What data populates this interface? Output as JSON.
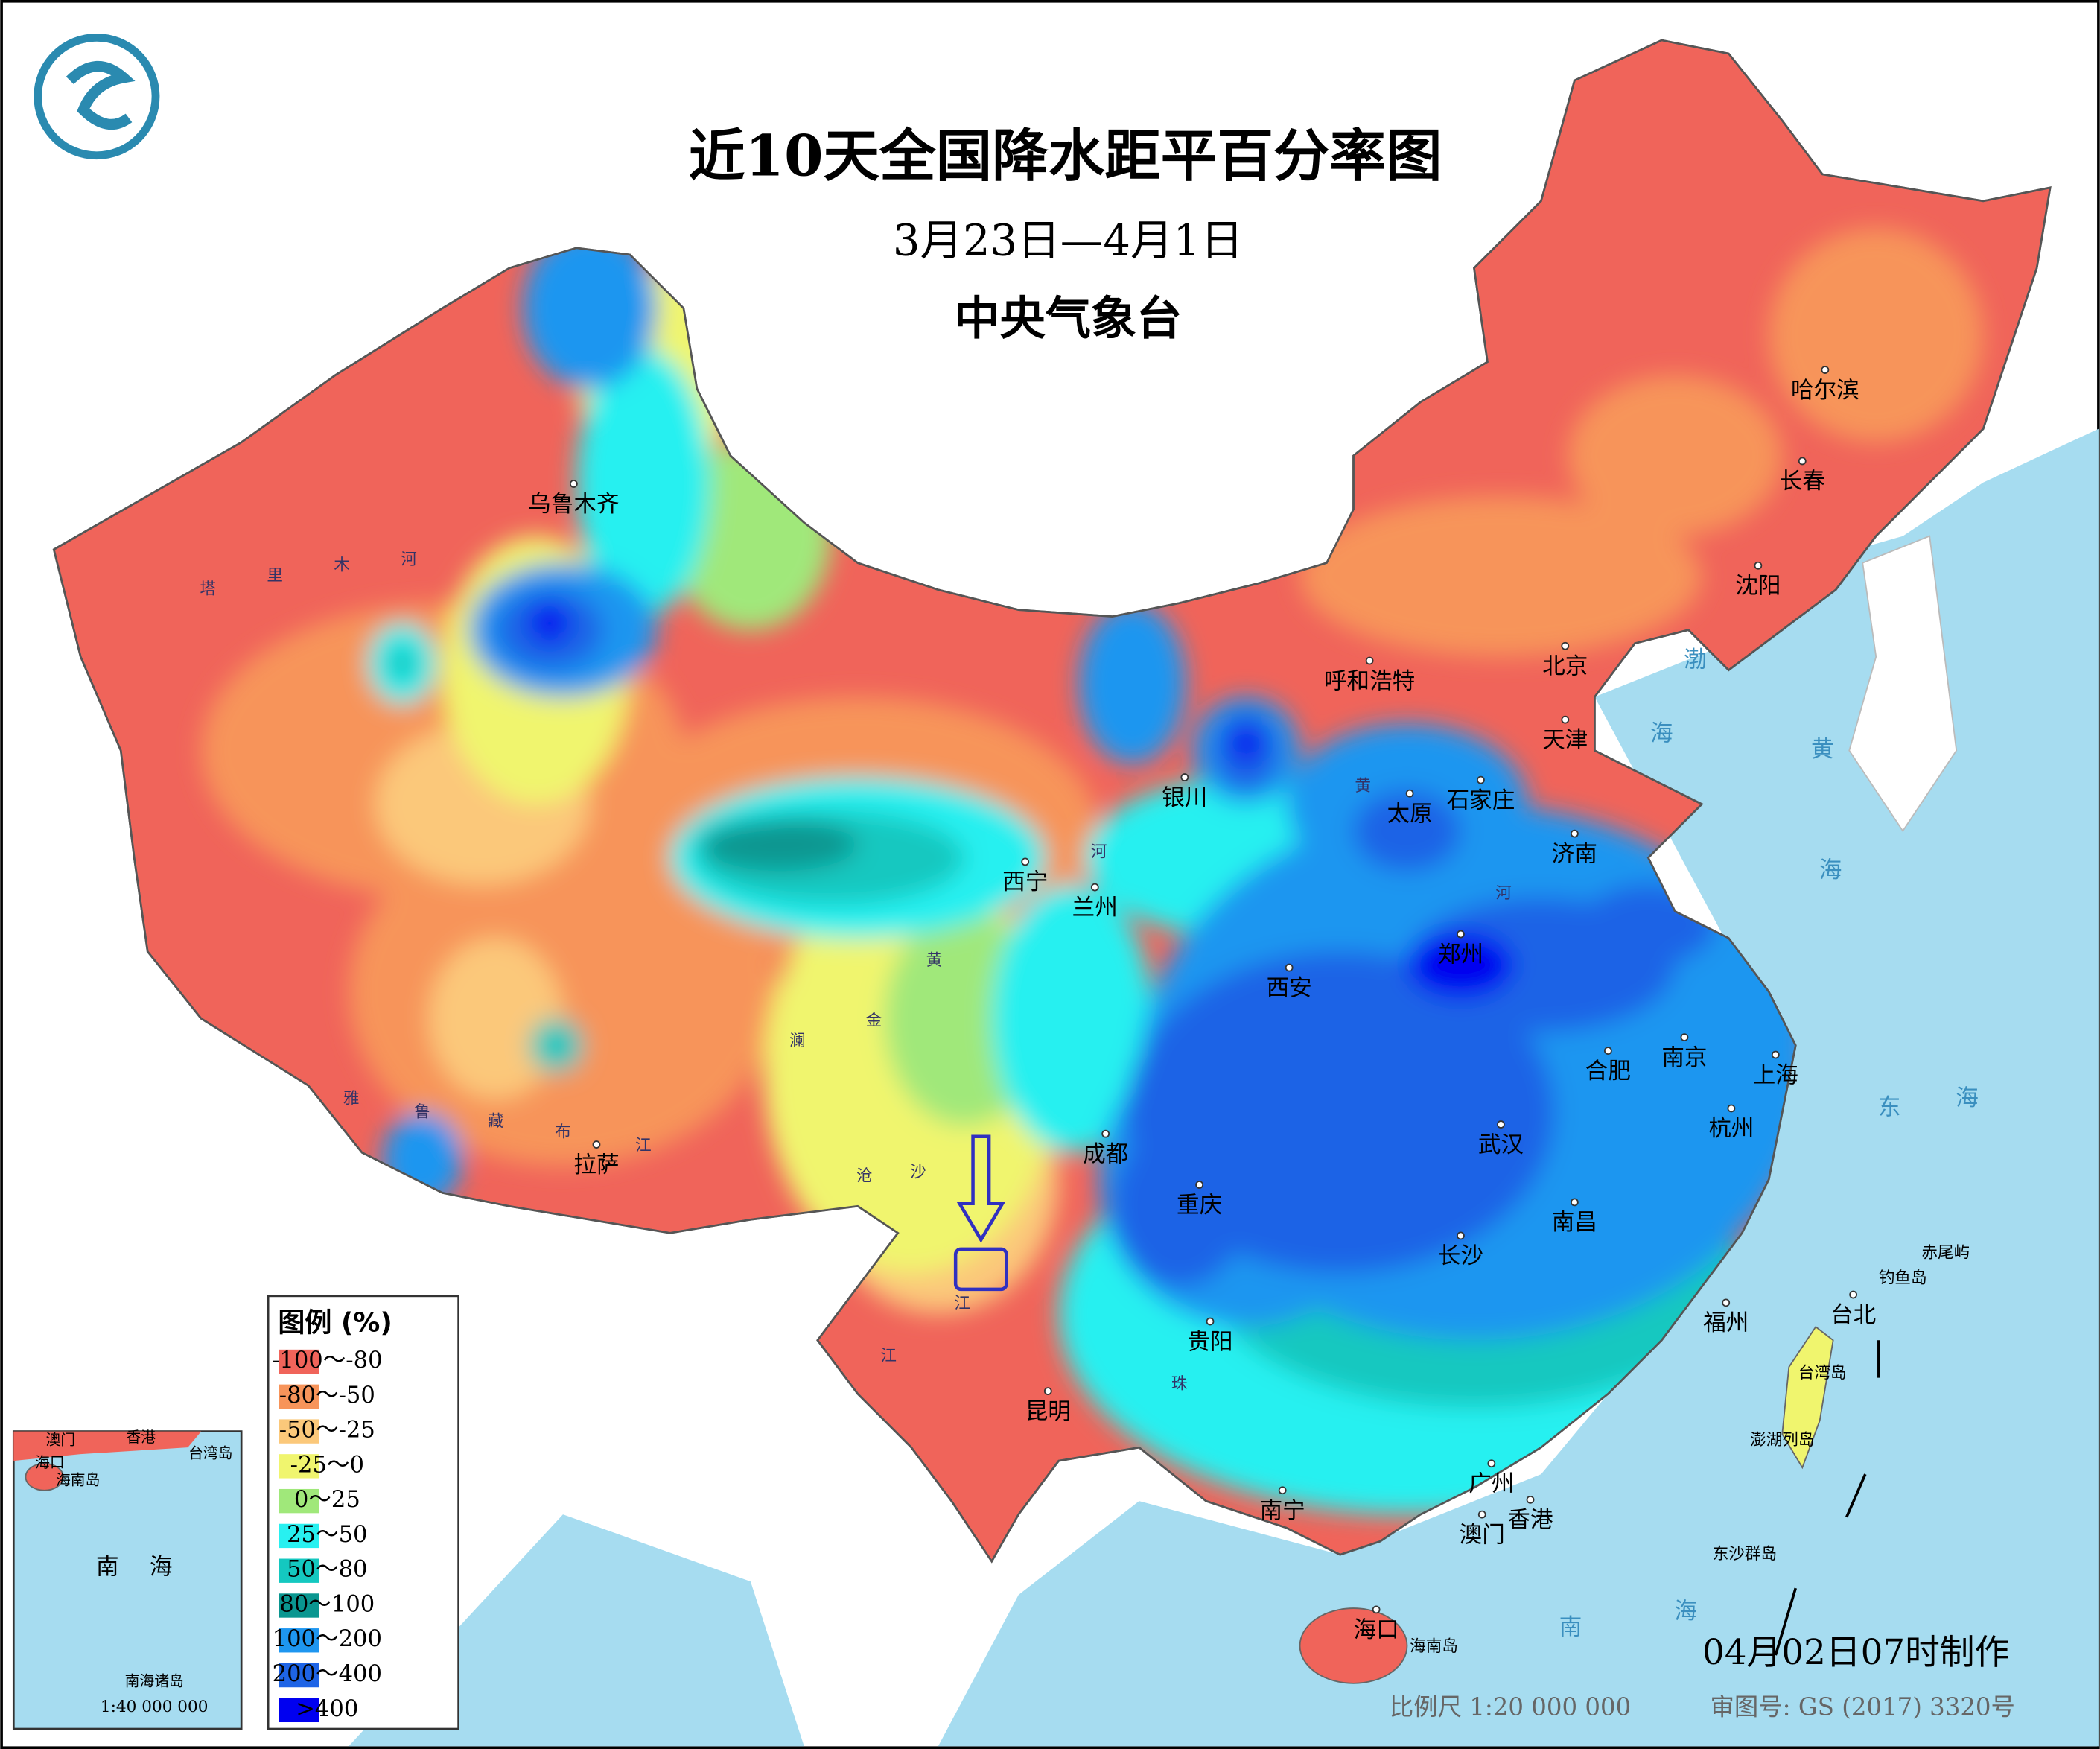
{
  "header": {
    "title": "近10天全国降水距平百分率图",
    "subtitle": "3月23日—4月1日",
    "agency": "中央气象台"
  },
  "legend": {
    "title": "图例 (%)",
    "items": [
      {
        "label": "-100～-80",
        "color": "#f0645a"
      },
      {
        "label": "-80～-50",
        "color": "#f7945a"
      },
      {
        "label": "-50～-25",
        "color": "#fbc87a"
      },
      {
        "label": "-25～0",
        "color": "#f0f56e"
      },
      {
        "label": "0～25",
        "color": "#a0e87a"
      },
      {
        "label": "25～50",
        "color": "#28f0f0"
      },
      {
        "label": "50～80",
        "color": "#14c8c0"
      },
      {
        "label": "80～100",
        "color": "#0a9690"
      },
      {
        "label": "100～200",
        "color": "#1e96f0"
      },
      {
        "label": "200～400",
        "color": "#1e64e6"
      },
      {
        "label": ">400",
        "color": "#0000f0"
      }
    ]
  },
  "cities": [
    "乌鲁木齐",
    "哈尔滨",
    "长春",
    "沈阳",
    "北京",
    "天津",
    "呼和浩特",
    "银川",
    "太原",
    "石家庄",
    "济南",
    "西宁",
    "兰州",
    "郑州",
    "西安",
    "合肥",
    "南京",
    "上海",
    "杭州",
    "武汉",
    "成都",
    "拉萨",
    "重庆",
    "南昌",
    "长沙",
    "福州",
    "台北",
    "贵阳",
    "昆明",
    "广州",
    "南宁",
    "香港",
    "澳门",
    "海口"
  ],
  "sea_labels": [
    "渤",
    "海",
    "黄",
    "海",
    "东",
    "海",
    "南",
    "海"
  ],
  "island_labels": [
    "台湾岛",
    "海南岛",
    "赤尾屿",
    "钓鱼岛",
    "澎湖列岛",
    "东沙群岛"
  ],
  "river_labels": [
    "塔",
    "里",
    "木",
    "河",
    "雅",
    "鲁",
    "藏",
    "布",
    "江",
    "黄",
    "河",
    "河",
    "黄",
    "金",
    "沙",
    "江",
    "澜",
    "沧",
    "江",
    "珠"
  ],
  "inset": {
    "labels": [
      "澳门",
      "香港",
      "海口",
      "海南岛",
      "台湾岛",
      "南",
      "海",
      "南海诸岛"
    ],
    "scale": "1:40 000 000"
  },
  "footer": {
    "made": "04月02日07时制作",
    "scale": "比例尺 1:20 000 000",
    "approval": "审图号: GS (2017) 3320号"
  }
}
